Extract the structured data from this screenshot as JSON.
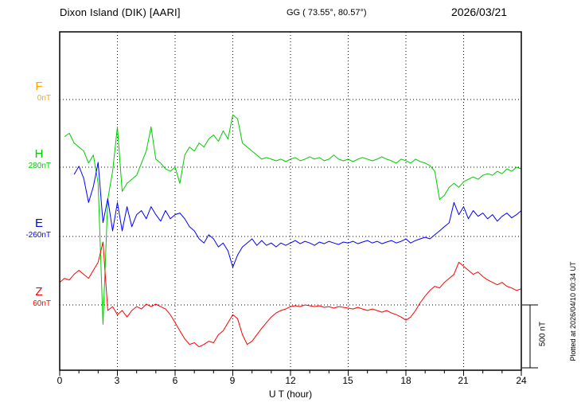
{
  "header": {
    "station": "Dixon Island (DIK)  [AARI]",
    "coords": "GG ( 73.55°,  80.57°)",
    "date": "2026/03/21"
  },
  "axes": {
    "x_ticks": [
      "0",
      "3",
      "6",
      "9",
      "12",
      "15",
      "18",
      "21",
      "24"
    ],
    "x_label": "U T (hour)"
  },
  "components": [
    {
      "id": "F",
      "label": "F",
      "baseline_label": "0nT",
      "baseline_nT": 0,
      "color": "#FFA500"
    },
    {
      "id": "H",
      "label": "H",
      "baseline_label": "280nT",
      "baseline_nT": 280,
      "color": "#00CC00"
    },
    {
      "id": "E",
      "label": "E",
      "baseline_label": "-260nT",
      "baseline_nT": -260,
      "color": "#0000FF"
    },
    {
      "id": "Z",
      "label": "Z",
      "baseline_label": "60nT",
      "baseline_nT": 60,
      "color": "#FF0000"
    }
  ],
  "scale_bar": {
    "label": "500 nT",
    "nT": 500
  },
  "footer_note": "Plotted at 2026/04/10 00:34 UT",
  "chart_data": {
    "type": "line",
    "title": "Dixon Island (DIK) [AARI] magnetogram 2026/03/21",
    "xlabel": "U T (hour)",
    "ylabel": "nT",
    "x_start": 0,
    "x_step": 0.25,
    "x_end": 24,
    "x_range": [
      0,
      24
    ],
    "grid": "dotted",
    "scale_nT_per_bar": 500,
    "series": [
      {
        "name": "H",
        "color": "#00CC00",
        "baseline_nT": 280,
        "values": [
          null,
          520,
          546,
          470,
          438,
          407,
          312,
          375,
          153,
          -954,
          27,
          248,
          596,
          90,
          153,
          185,
          217,
          312,
          407,
          596,
          343,
          312,
          267,
          248,
          280,
          153,
          375,
          438,
          407,
          470,
          438,
          502,
          533,
          483,
          565,
          502,
          692,
          660,
          470,
          438,
          407,
          375,
          343,
          356,
          343,
          330,
          343,
          324,
          343,
          356,
          330,
          343,
          362,
          343,
          356,
          330,
          343,
          375,
          343,
          330,
          343,
          324,
          343,
          356,
          343,
          330,
          343,
          362,
          343,
          330,
          312,
          343,
          330,
          312,
          343,
          324,
          312,
          293,
          248,
          27,
          59,
          122,
          153,
          122,
          166,
          185,
          204,
          185,
          217,
          229,
          217,
          248,
          229,
          267,
          248,
          280,
          267
        ]
      },
      {
        "name": "E",
        "color": "#0000FF",
        "baseline_nT": -260,
        "values": [
          null,
          null,
          null,
          227,
          291,
          196,
          6,
          132,
          322,
          -152,
          37,
          -216,
          6,
          -216,
          -26,
          -184,
          -89,
          -57,
          -121,
          -26,
          -89,
          -140,
          -57,
          -121,
          -89,
          -76,
          -121,
          -184,
          -216,
          -279,
          -311,
          -247,
          -279,
          -342,
          -311,
          -374,
          -501,
          -406,
          -342,
          -311,
          -279,
          -330,
          -292,
          -330,
          -311,
          -342,
          -311,
          -330,
          -311,
          -292,
          -317,
          -298,
          -311,
          -330,
          -304,
          -317,
          -298,
          -311,
          -323,
          -304,
          -311,
          -298,
          -317,
          -304,
          -292,
          -311,
          -298,
          -317,
          -304,
          -292,
          -311,
          -298,
          -279,
          -311,
          -292,
          -279,
          -266,
          -279,
          -247,
          -216,
          -184,
          -152,
          6,
          -89,
          -26,
          -121,
          -57,
          -102,
          -76,
          -121,
          -89,
          -140,
          -102,
          -76,
          -114,
          -89,
          -57
        ]
      },
      {
        "name": "Z",
        "color": "#FF0000",
        "baseline_nT": 60,
        "values": [
          237,
          269,
          256,
          300,
          332,
          300,
          269,
          332,
          395,
          554,
          16,
          47,
          -16,
          16,
          -35,
          16,
          47,
          28,
          66,
          47,
          66,
          47,
          28,
          -16,
          -79,
          -143,
          -206,
          -250,
          -237,
          -269,
          -250,
          -225,
          -237,
          -174,
          -143,
          -79,
          -16,
          -48,
          -174,
          -250,
          -225,
          -174,
          -124,
          -79,
          -35,
          -3,
          16,
          28,
          47,
          54,
          47,
          60,
          54,
          47,
          54,
          41,
          47,
          35,
          47,
          41,
          35,
          28,
          41,
          28,
          16,
          28,
          16,
          3,
          16,
          -3,
          -16,
          -35,
          -60,
          -35,
          16,
          79,
          130,
          174,
          206,
          193,
          237,
          269,
          300,
          395,
          364,
          332,
          300,
          319,
          282,
          256,
          237,
          218,
          237,
          206,
          193,
          174,
          187
        ]
      }
    ]
  }
}
